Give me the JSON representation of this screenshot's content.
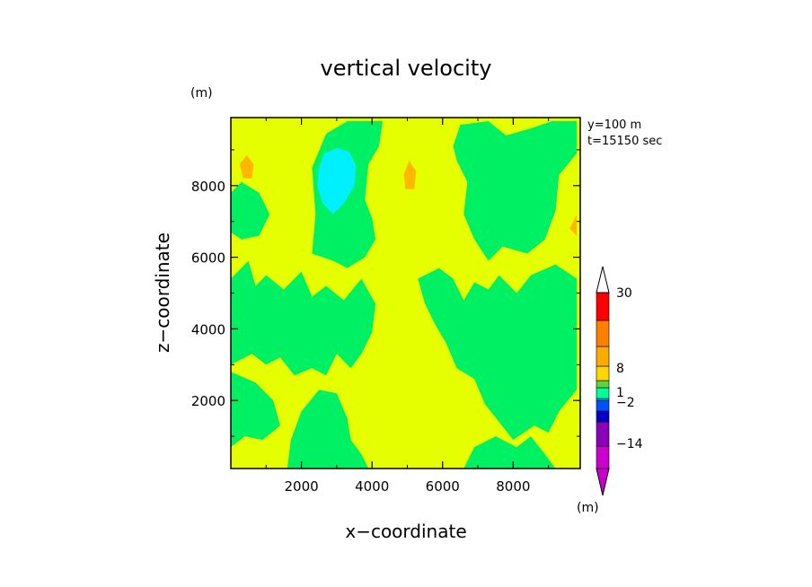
{
  "chart_data": {
    "type": "heatmap",
    "title": "vertical velocity",
    "xlabel": "x−coordinate",
    "ylabel": "z−coordinate",
    "x_unit": "(m)",
    "y_unit": "(m)",
    "annotations": [
      "y=100 m",
      "t=15150 sec"
    ],
    "xlim": [
      0,
      9900
    ],
    "ylim": [
      100,
      9900
    ],
    "x_ticks": [
      2000,
      4000,
      6000,
      8000
    ],
    "y_ticks": [
      2000,
      4000,
      6000,
      8000
    ],
    "x_tick_labels": [
      "2000",
      "4000",
      "6000",
      "8000"
    ],
    "y_tick_labels": [
      "2000",
      "4000",
      "6000",
      "8000"
    ],
    "background_color": "#e6ff00",
    "colorbar": {
      "unit": "(m)",
      "tick_labels": [
        "30",
        "8",
        "1",
        "−2",
        "−14"
      ],
      "colors": [
        "#cc00cc",
        "#8a00b8",
        "#0000c8",
        "#0050ff",
        "#00d2ff",
        "#00ff96",
        "#62d23a",
        "#ffd700",
        "#ffaa00",
        "#ff8000",
        "#ff0000",
        "#ff6a6a",
        "#ffbdbd"
      ]
    },
    "regions": [
      {
        "name": "updraft-large-top",
        "color": "#00f064",
        "points": [
          [
            2300,
            6100
          ],
          [
            2400,
            7200
          ],
          [
            2300,
            8500
          ],
          [
            2700,
            9450
          ],
          [
            3300,
            9800
          ],
          [
            4300,
            9800
          ],
          [
            4200,
            9100
          ],
          [
            3900,
            8600
          ],
          [
            3800,
            7600
          ],
          [
            4000,
            7100
          ],
          [
            4100,
            6500
          ],
          [
            3800,
            6000
          ],
          [
            3300,
            5700
          ],
          [
            2900,
            5900
          ]
        ]
      },
      {
        "name": "downdraft-cyan",
        "color": "#00f0ff",
        "points": [
          [
            2500,
            8500
          ],
          [
            2650,
            8900
          ],
          [
            3000,
            9050
          ],
          [
            3350,
            8950
          ],
          [
            3550,
            8550
          ],
          [
            3500,
            8000
          ],
          [
            3200,
            7500
          ],
          [
            2900,
            7200
          ],
          [
            2600,
            7500
          ],
          [
            2450,
            8000
          ]
        ]
      },
      {
        "name": "updraft-right-top",
        "color": "#00f064",
        "points": [
          [
            6300,
            9100
          ],
          [
            6500,
            9700
          ],
          [
            7300,
            9800
          ],
          [
            7800,
            9400
          ],
          [
            8500,
            9600
          ],
          [
            9100,
            9800
          ],
          [
            9800,
            9800
          ],
          [
            9800,
            8900
          ],
          [
            9300,
            8300
          ],
          [
            9200,
            7300
          ],
          [
            8900,
            6500
          ],
          [
            8400,
            6100
          ],
          [
            7700,
            6300
          ],
          [
            7300,
            5900
          ],
          [
            6900,
            6500
          ],
          [
            6600,
            7200
          ],
          [
            6700,
            8100
          ],
          [
            6400,
            8700
          ]
        ]
      },
      {
        "name": "updraft-left-middle",
        "color": "#00f064",
        "points": [
          [
            0,
            5400
          ],
          [
            500,
            5900
          ],
          [
            700,
            5200
          ],
          [
            1000,
            5500
          ],
          [
            1500,
            5100
          ],
          [
            2000,
            5600
          ],
          [
            2300,
            4900
          ],
          [
            2700,
            5200
          ],
          [
            3200,
            4800
          ],
          [
            3700,
            5400
          ],
          [
            4100,
            4700
          ],
          [
            4000,
            3900
          ],
          [
            3700,
            3300
          ],
          [
            3400,
            2900
          ],
          [
            3000,
            3300
          ],
          [
            2700,
            2700
          ],
          [
            2300,
            2900
          ],
          [
            1800,
            2700
          ],
          [
            1400,
            3200
          ],
          [
            1000,
            3000
          ],
          [
            600,
            3300
          ],
          [
            0,
            3000
          ]
        ]
      },
      {
        "name": "updraft-left-lower",
        "color": "#00f064",
        "points": [
          [
            0,
            2800
          ],
          [
            700,
            2500
          ],
          [
            1200,
            2000
          ],
          [
            1400,
            1300
          ],
          [
            900,
            900
          ],
          [
            400,
            1000
          ],
          [
            0,
            700
          ]
        ]
      },
      {
        "name": "updraft-bottom-center",
        "color": "#00f064",
        "points": [
          [
            1600,
            100
          ],
          [
            1700,
            900
          ],
          [
            2000,
            1700
          ],
          [
            2500,
            2300
          ],
          [
            3000,
            2200
          ],
          [
            3300,
            1500
          ],
          [
            3400,
            900
          ],
          [
            3700,
            500
          ],
          [
            3900,
            100
          ]
        ]
      },
      {
        "name": "updraft-center-right",
        "color": "#00f064",
        "points": [
          [
            5300,
            5400
          ],
          [
            5900,
            5700
          ],
          [
            6300,
            5400
          ],
          [
            6600,
            4800
          ],
          [
            6900,
            5300
          ],
          [
            7300,
            5100
          ],
          [
            7600,
            5500
          ],
          [
            8100,
            5000
          ],
          [
            8500,
            5500
          ],
          [
            9200,
            5800
          ],
          [
            9800,
            5400
          ],
          [
            9800,
            2300
          ],
          [
            9300,
            1700
          ],
          [
            9000,
            1100
          ],
          [
            8600,
            1300
          ],
          [
            8000,
            900
          ],
          [
            7600,
            1400
          ],
          [
            7200,
            1900
          ],
          [
            6900,
            2600
          ],
          [
            6400,
            2900
          ],
          [
            6100,
            3600
          ],
          [
            5800,
            4100
          ],
          [
            5500,
            4700
          ]
        ]
      },
      {
        "name": "updraft-bottom-right",
        "color": "#00f064",
        "points": [
          [
            6600,
            100
          ],
          [
            6900,
            700
          ],
          [
            7500,
            1000
          ],
          [
            8100,
            700
          ],
          [
            8500,
            1000
          ],
          [
            8900,
            500
          ],
          [
            9200,
            100
          ]
        ]
      },
      {
        "name": "updraft-left-top",
        "color": "#00f064",
        "points": [
          [
            0,
            7800
          ],
          [
            300,
            8100
          ],
          [
            800,
            7800
          ],
          [
            1100,
            7200
          ],
          [
            800,
            6600
          ],
          [
            300,
            6500
          ],
          [
            0,
            6700
          ]
        ]
      },
      {
        "name": "warm-patch-left",
        "color": "#ffb700",
        "points": [
          [
            250,
            8600
          ],
          [
            450,
            8850
          ],
          [
            650,
            8600
          ],
          [
            600,
            8200
          ],
          [
            350,
            8200
          ]
        ]
      },
      {
        "name": "warm-patch-center",
        "color": "#ffb700",
        "points": [
          [
            4900,
            8300
          ],
          [
            5050,
            8700
          ],
          [
            5250,
            8400
          ],
          [
            5200,
            7900
          ],
          [
            4950,
            7900
          ]
        ]
      },
      {
        "name": "warm-patch-right",
        "color": "#ffb700",
        "points": [
          [
            9600,
            6800
          ],
          [
            9800,
            7200
          ],
          [
            9800,
            6600
          ]
        ]
      }
    ]
  }
}
